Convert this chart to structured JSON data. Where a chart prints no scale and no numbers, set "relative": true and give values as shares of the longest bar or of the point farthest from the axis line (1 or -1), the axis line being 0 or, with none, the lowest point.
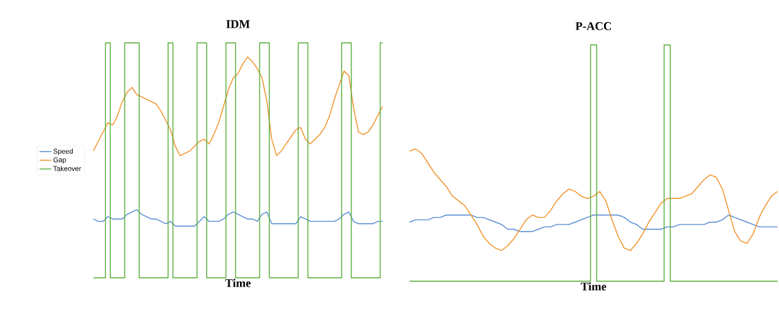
{
  "chart_data": [
    {
      "type": "line",
      "title": "IDM",
      "xlabel": "Time",
      "relative": true,
      "legend": "left",
      "marker": "none",
      "categories": [
        null,
        null,
        null,
        null,
        null,
        null,
        null,
        null,
        null,
        null,
        null,
        null,
        null,
        null,
        null,
        null,
        null,
        null,
        null,
        null,
        null,
        null,
        null,
        null,
        null,
        null,
        null,
        null,
        null,
        null,
        null,
        null,
        null,
        null,
        null,
        null,
        null,
        null,
        null,
        null,
        null,
        null,
        null,
        null,
        null,
        null,
        null,
        null,
        null,
        null,
        null,
        null,
        null,
        null,
        null,
        null,
        null,
        null,
        null,
        null,
        null
      ],
      "series": [
        {
          "name": "Speed",
          "color": "#5b8fd4",
          "values": [
            0.25,
            0.24,
            0.24,
            0.26,
            0.25,
            0.25,
            0.25,
            0.27,
            0.28,
            0.29,
            0.27,
            0.26,
            0.25,
            0.25,
            0.24,
            0.23,
            0.24,
            0.22,
            0.22,
            0.22,
            0.22,
            0.22,
            0.24,
            0.26,
            0.24,
            0.24,
            0.24,
            0.25,
            0.27,
            0.28,
            0.27,
            0.26,
            0.25,
            0.25,
            0.24,
            0.27,
            0.28,
            0.23,
            0.23,
            0.23,
            0.23,
            0.23,
            0.23,
            0.26,
            0.25,
            0.24,
            0.24,
            0.24,
            0.24,
            0.24,
            0.24,
            0.25,
            0.27,
            0.28,
            0.24,
            0.23,
            0.23,
            0.23,
            0.23,
            0.24,
            0.24
          ]
        },
        {
          "name": "Gap",
          "color": "#f0932b",
          "values": [
            0.54,
            0.58,
            0.62,
            0.66,
            0.65,
            0.69,
            0.75,
            0.79,
            0.81,
            0.78,
            0.77,
            0.76,
            0.75,
            0.74,
            0.71,
            0.67,
            0.63,
            0.56,
            0.52,
            0.53,
            0.54,
            0.56,
            0.58,
            0.59,
            0.57,
            0.61,
            0.66,
            0.73,
            0.8,
            0.85,
            0.87,
            0.91,
            0.94,
            0.92,
            0.89,
            0.85,
            0.75,
            0.59,
            0.52,
            0.54,
            0.57,
            0.6,
            0.63,
            0.64,
            0.59,
            0.57,
            0.59,
            0.61,
            0.64,
            0.69,
            0.76,
            0.82,
            0.88,
            0.86,
            0.72,
            0.62,
            0.61,
            0.62,
            0.65,
            0.69,
            0.73
          ]
        },
        {
          "name": "Takeover",
          "type": "step",
          "color": "#5cb040",
          "values": [
            0,
            0,
            0,
            1,
            0,
            0,
            0,
            1,
            1,
            1,
            0,
            0,
            0,
            0,
            0,
            0,
            1,
            0,
            0,
            0,
            0,
            0,
            1,
            1,
            0,
            0,
            0,
            0,
            1,
            1,
            0,
            0,
            0,
            0,
            0,
            1,
            1,
            0,
            0,
            0,
            0,
            0,
            0,
            1,
            1,
            0,
            0,
            0,
            0,
            0,
            0,
            0,
            1,
            1,
            0,
            0,
            0,
            0,
            0,
            0,
            1
          ]
        }
      ]
    },
    {
      "type": "line",
      "title": "P-ACC",
      "xlabel": "Time",
      "relative": true,
      "marker": "none",
      "categories": [
        null,
        null,
        null,
        null,
        null,
        null,
        null,
        null,
        null,
        null,
        null,
        null,
        null,
        null,
        null,
        null,
        null,
        null,
        null,
        null,
        null,
        null,
        null,
        null,
        null,
        null,
        null,
        null,
        null,
        null,
        null,
        null,
        null,
        null,
        null,
        null,
        null,
        null,
        null,
        null,
        null,
        null,
        null,
        null,
        null,
        null,
        null,
        null,
        null,
        null,
        null,
        null,
        null,
        null,
        null,
        null,
        null,
        null,
        null,
        null,
        null
      ],
      "series": [
        {
          "color": "#5b8fd4",
          "values": [
            0.25,
            0.26,
            0.26,
            0.26,
            0.27,
            0.27,
            0.28,
            0.28,
            0.28,
            0.28,
            0.28,
            0.27,
            0.27,
            0.26,
            0.25,
            0.24,
            0.22,
            0.22,
            0.21,
            0.21,
            0.21,
            0.22,
            0.23,
            0.23,
            0.24,
            0.24,
            0.24,
            0.25,
            0.26,
            0.27,
            0.28,
            0.28,
            0.28,
            0.28,
            0.28,
            0.27,
            0.25,
            0.24,
            0.22,
            0.22,
            0.22,
            0.22,
            0.23,
            0.23,
            0.24,
            0.24,
            0.24,
            0.24,
            0.24,
            0.25,
            0.25,
            0.26,
            0.28,
            0.27,
            0.26,
            0.25,
            0.24,
            0.23,
            0.23,
            0.23,
            0.23
          ]
        },
        {
          "color": "#f0932b",
          "values": [
            0.55,
            0.56,
            0.54,
            0.5,
            0.46,
            0.43,
            0.4,
            0.36,
            0.34,
            0.32,
            0.28,
            0.24,
            0.19,
            0.16,
            0.14,
            0.13,
            0.15,
            0.18,
            0.22,
            0.26,
            0.28,
            0.27,
            0.27,
            0.3,
            0.34,
            0.37,
            0.39,
            0.38,
            0.36,
            0.35,
            0.36,
            0.38,
            0.34,
            0.26,
            0.19,
            0.14,
            0.13,
            0.16,
            0.2,
            0.25,
            0.29,
            0.33,
            0.35,
            0.35,
            0.35,
            0.36,
            0.37,
            0.4,
            0.43,
            0.45,
            0.44,
            0.39,
            0.3,
            0.21,
            0.17,
            0.16,
            0.2,
            0.27,
            0.32,
            0.36,
            0.38
          ]
        },
        {
          "type": "step",
          "color": "#5cb040",
          "values": [
            0,
            0,
            0,
            0,
            0,
            0,
            0,
            0,
            0,
            0,
            0,
            0,
            0,
            0,
            0,
            0,
            0,
            0,
            0,
            0,
            0,
            0,
            0,
            0,
            0,
            0,
            0,
            0,
            0,
            0,
            1,
            0,
            0,
            0,
            0,
            0,
            0,
            0,
            0,
            0,
            0,
            0,
            1,
            0,
            0,
            0,
            0,
            0,
            0,
            0,
            0,
            0,
            0,
            0,
            0,
            0,
            0,
            0,
            0,
            0,
            0
          ]
        }
      ]
    }
  ]
}
